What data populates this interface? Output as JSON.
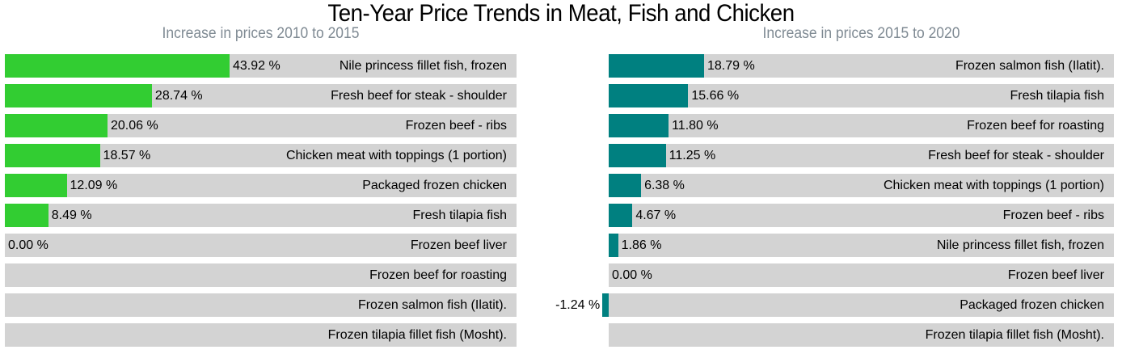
{
  "title": "Ten-Year Price Trends in Meat, Fish and Chicken",
  "chart_data": [
    {
      "type": "bar",
      "subtitle": "Increase in prices 2010 to 2015",
      "color": "#32cd32",
      "unit": "%",
      "categories": [
        "Nile princess fillet fish, frozen",
        "Fresh beef for steak - shoulder",
        "Frozen beef - ribs",
        "Chicken meat with toppings (1 portion)",
        "Packaged frozen chicken",
        "Fresh tilapia fish",
        "Frozen beef liver",
        "Frozen beef for roasting",
        "Frozen salmon fish (Ilatit).",
        "Frozen tilapia fillet fish (Mosht)."
      ],
      "values": [
        43.92,
        28.74,
        20.06,
        18.57,
        12.09,
        8.49,
        0.0,
        null,
        null,
        null
      ],
      "value_labels": [
        "43.92 %",
        "28.74 %",
        "20.06 %",
        "18.57 %",
        "12.09 %",
        "8.49 %",
        "0.00 %",
        "",
        "",
        ""
      ]
    },
    {
      "type": "bar",
      "subtitle": "Increase in prices 2015 to 2020",
      "color": "#008080",
      "unit": "%",
      "categories": [
        "Frozen salmon fish (Ilatit).",
        "Fresh tilapia fish",
        "Frozen beef for roasting",
        "Fresh beef for steak - shoulder",
        "Chicken meat with toppings (1 portion)",
        "Frozen beef - ribs",
        "Nile princess fillet fish, frozen",
        "Frozen beef liver",
        "Packaged frozen chicken",
        "Frozen tilapia fillet fish (Mosht)."
      ],
      "values": [
        18.79,
        15.66,
        11.8,
        11.25,
        6.38,
        4.67,
        1.86,
        0.0,
        -1.24,
        null
      ],
      "value_labels": [
        "18.79 %",
        "15.66 %",
        "11.80 %",
        "11.25 %",
        "6.38 %",
        "4.67 %",
        "1.86 %",
        "0.00 %",
        "-1.24 %",
        ""
      ]
    }
  ]
}
